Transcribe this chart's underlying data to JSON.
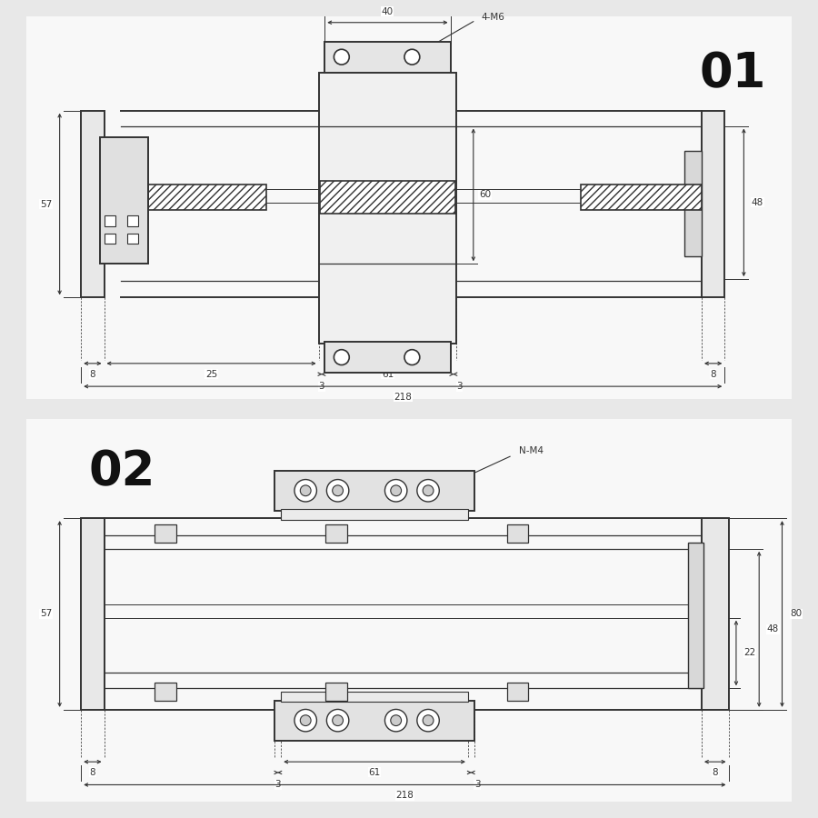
{
  "bg_color": "#e8e8e8",
  "panel_color": "#f5f5f5",
  "line_color": "#333333",
  "label_01": "01",
  "label_02": "02",
  "dims_top": {
    "width_40": "40",
    "label_4M6": "4-M6",
    "dim_57": "57",
    "dim_48": "48",
    "dim_60": "60",
    "dim_8_left": "8",
    "dim_25": "25",
    "dim_3_left": "3",
    "dim_61": "61",
    "dim_3_right": "3",
    "dim_8_right": "8",
    "dim_218": "218"
  },
  "dims_bot": {
    "label_NM4": "N-M4",
    "dim_57": "57",
    "dim_22": "22",
    "dim_48": "48",
    "dim_80": "80",
    "dim_8_left": "8",
    "dim_3_left": "3",
    "dim_61": "61",
    "dim_3_right": "3",
    "dim_8_right": "8",
    "dim_218": "218"
  }
}
